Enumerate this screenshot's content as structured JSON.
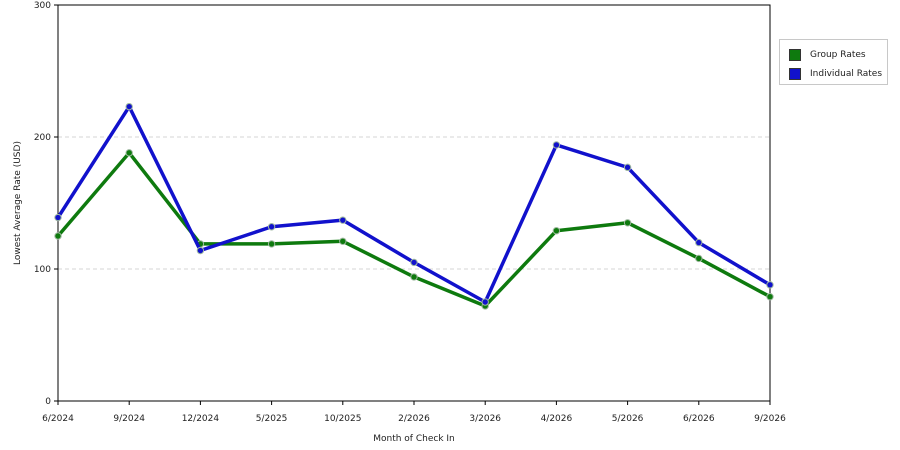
{
  "chart_data": {
    "type": "line",
    "xlabel": "Month of Check In",
    "ylabel": "Lowest Average Rate (USD)",
    "categories": [
      "6/2024",
      "9/2024",
      "12/2024",
      "5/2025",
      "10/2025",
      "2/2026",
      "3/2026",
      "4/2026",
      "5/2026",
      "6/2026",
      "9/2026"
    ],
    "ylim": [
      0,
      300
    ],
    "yticks": [
      "0",
      "100",
      "200",
      "300"
    ],
    "grid": "horizontal dashed",
    "legend_position": "right",
    "series": [
      {
        "name": "Group Rates",
        "color": "#0e7a0e",
        "values": [
          125,
          188,
          119,
          119,
          121,
          94,
          72,
          129,
          135,
          108,
          79
        ]
      },
      {
        "name": "Individual Rates",
        "color": "#1111cc",
        "values": [
          139,
          223,
          114,
          132,
          137,
          105,
          75,
          194,
          177,
          120,
          88
        ]
      }
    ]
  }
}
